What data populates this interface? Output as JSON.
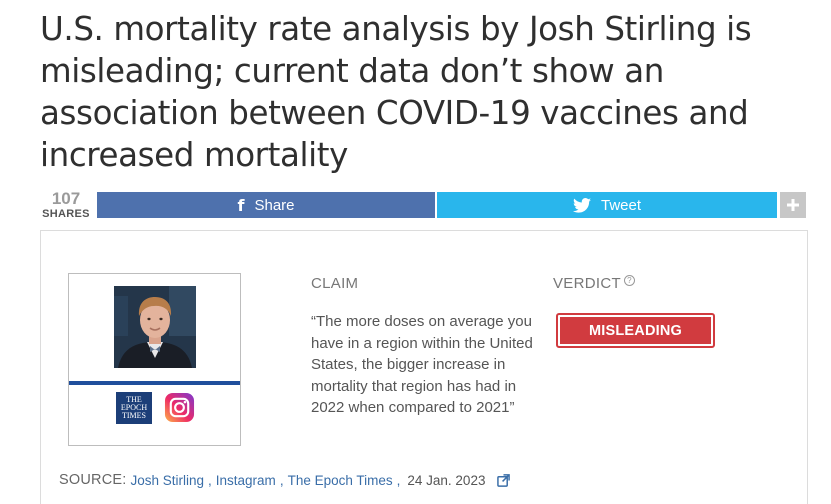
{
  "headline": "U.S. mortality rate analysis by Josh Stirling is misleading; current data don’t show an association between COVID-19 vaccines and increased mortality",
  "share_bar": {
    "count": "107",
    "count_label": "SHARES",
    "facebook_label": "Share",
    "twitter_label": "Tweet",
    "more_icon": "plus-icon",
    "colors": {
      "facebook": "#4e71ad",
      "twitter": "#29b6ec",
      "more": "#c7c7c7"
    }
  },
  "claim": {
    "heading": "CLAIM",
    "text": "“The more doses on average you have in a region within the United States, the bigger increase in mortality that region has had in 2022 when compared to 2021”"
  },
  "verdict": {
    "heading": "VERDICT",
    "help_icon": "question-circle-icon",
    "label": "MISLEADING",
    "color": "#d13b3f"
  },
  "speaker": {
    "logos": [
      {
        "name": "epoch-times-logo",
        "lines": [
          "THE",
          "EPOCH",
          "TIMES"
        ]
      },
      {
        "name": "instagram-logo"
      }
    ]
  },
  "source": {
    "label": "SOURCE:",
    "links": [
      "Josh Stirling",
      "Instagram",
      "The Epoch Times"
    ],
    "separator": ",",
    "date": "24 Jan. 2023",
    "external_icon": "external-link-icon"
  }
}
